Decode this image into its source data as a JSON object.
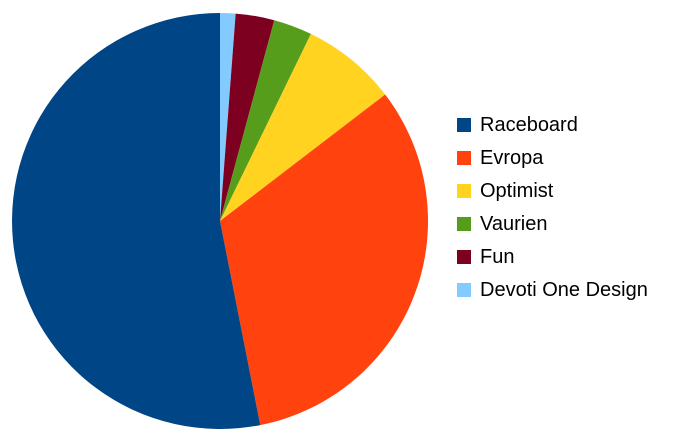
{
  "chart_data": {
    "type": "pie",
    "title": "",
    "start_angle_deg": 0,
    "direction": "clockwise",
    "legend_position": "right",
    "slices": [
      {
        "name": "Devoti One Design",
        "value": 1.2,
        "color": "#83caff"
      },
      {
        "name": "Fun",
        "value": 3.0,
        "color": "#7e0021"
      },
      {
        "name": "Vaurien",
        "value": 3.0,
        "color": "#579d1c"
      },
      {
        "name": "Optimist",
        "value": 7.4,
        "color": "#ffd320"
      },
      {
        "name": "Evropa",
        "value": 32.3,
        "color": "#ff420e"
      },
      {
        "name": "Raceboard",
        "value": 53.1,
        "color": "#004586"
      }
    ],
    "legend": [
      {
        "name": "Raceboard",
        "color": "#004586"
      },
      {
        "name": "Evropa",
        "color": "#ff420e"
      },
      {
        "name": "Optimist",
        "color": "#ffd320"
      },
      {
        "name": "Vaurien",
        "color": "#579d1c"
      },
      {
        "name": "Fun",
        "color": "#7e0021"
      },
      {
        "name": "Devoti One Design",
        "color": "#83caff"
      }
    ]
  }
}
